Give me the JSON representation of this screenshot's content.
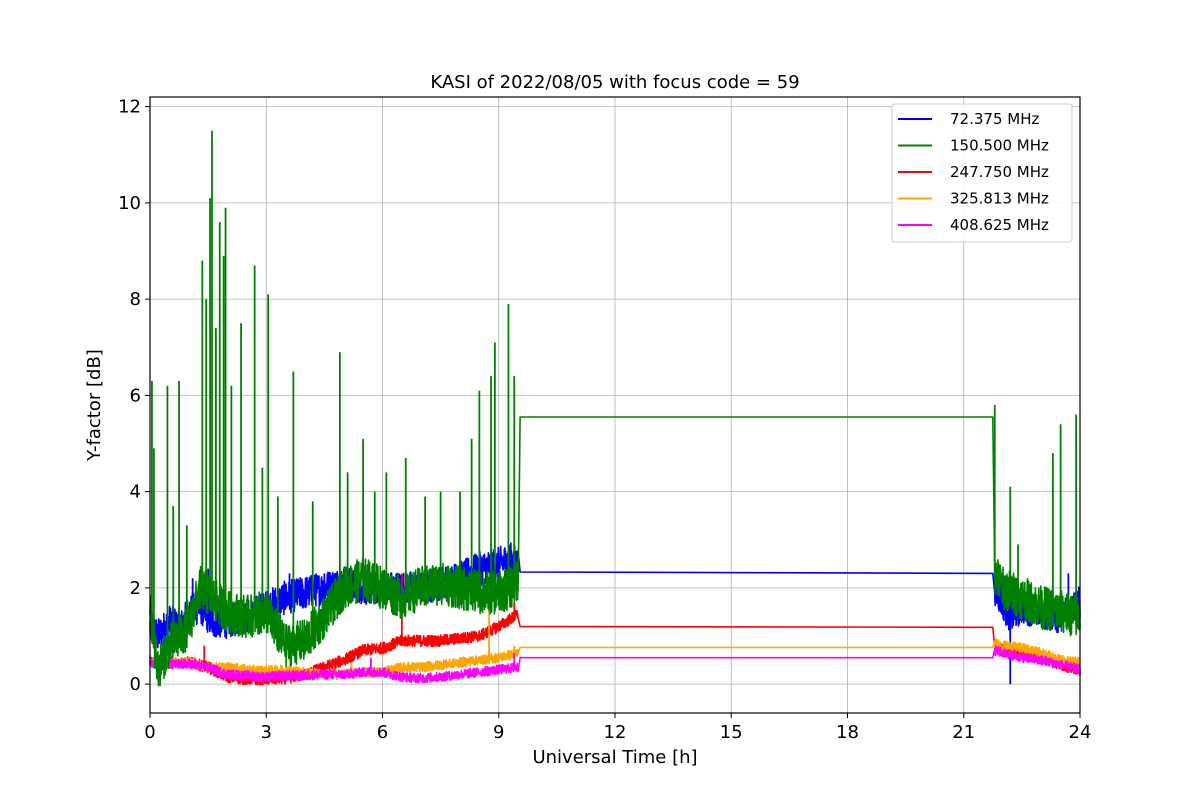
{
  "chart_data": {
    "type": "line",
    "title": "KASI of 2022/08/05 with focus code = 59",
    "xlabel": "Universal Time [h]",
    "ylabel": "Y-factor [dB]",
    "xlim": [
      0,
      24
    ],
    "ylim": [
      -0.6,
      12.2
    ],
    "xticks": [
      0,
      3,
      6,
      9,
      12,
      15,
      18,
      21,
      24
    ],
    "yticks": [
      0,
      2,
      4,
      6,
      8,
      10,
      12
    ],
    "grid": true,
    "legend_position": "top-right",
    "series": [
      {
        "name": " 72.375 MHz",
        "color": "#0000ff",
        "x": [
          0,
          0.2,
          0.5,
          0.8,
          1.0,
          1.3,
          1.6,
          2.0,
          2.5,
          3.0,
          3.5,
          4.0,
          4.5,
          5.0,
          5.5,
          6.0,
          6.5,
          7.0,
          7.5,
          8.0,
          8.5,
          9.0,
          9.3,
          9.5,
          9.55,
          21.75,
          21.8,
          22.0,
          22.2,
          22.5,
          23.0,
          23.5,
          24.0
        ],
        "y": [
          1.2,
          1.0,
          1.3,
          1.2,
          1.5,
          1.6,
          1.3,
          1.3,
          1.4,
          1.6,
          1.8,
          1.9,
          2.0,
          2.1,
          2.0,
          2.0,
          2.0,
          2.0,
          2.1,
          2.2,
          2.4,
          2.5,
          2.6,
          2.5,
          2.33,
          2.3,
          2.0,
          1.7,
          1.4,
          1.6,
          1.5,
          1.4,
          1.7
        ],
        "spikes": [
          [
            1.1,
            2.2
          ],
          [
            1.5,
            2.4
          ],
          [
            3.6,
            2.3
          ],
          [
            4.5,
            2.3
          ],
          [
            8.9,
            2.7
          ],
          [
            9.4,
            2.9
          ],
          [
            21.8,
            2.3
          ],
          [
            22.2,
            0.0
          ],
          [
            23.7,
            2.3
          ]
        ]
      },
      {
        "name": "150.500 MHz",
        "color": "#008000",
        "x": [
          0,
          0.2,
          0.5,
          0.8,
          1.0,
          1.3,
          1.6,
          2.0,
          2.5,
          3.0,
          3.5,
          4.0,
          4.5,
          5.0,
          5.5,
          6.0,
          6.5,
          7.0,
          7.5,
          8.0,
          8.5,
          9.0,
          9.3,
          9.5,
          9.55,
          21.75,
          21.8,
          22.0,
          22.5,
          23.0,
          23.5,
          24.0
        ],
        "y": [
          1.5,
          0.3,
          0.8,
          1.0,
          1.2,
          2.0,
          1.8,
          1.5,
          1.4,
          1.5,
          0.8,
          0.9,
          1.4,
          2.0,
          2.2,
          2.0,
          1.8,
          2.0,
          2.1,
          2.0,
          1.9,
          1.9,
          2.0,
          2.2,
          5.55,
          5.55,
          2.3,
          2.0,
          1.8,
          1.6,
          1.5,
          1.4
        ],
        "spikes": [
          [
            0.05,
            6.3
          ],
          [
            0.1,
            4.9
          ],
          [
            0.45,
            6.2
          ],
          [
            0.6,
            3.7
          ],
          [
            0.75,
            6.3
          ],
          [
            0.95,
            3.3
          ],
          [
            1.35,
            8.8
          ],
          [
            1.45,
            8.0
          ],
          [
            1.55,
            10.1
          ],
          [
            1.6,
            11.5
          ],
          [
            1.7,
            7.4
          ],
          [
            1.8,
            9.6
          ],
          [
            1.9,
            8.9
          ],
          [
            1.95,
            9.9
          ],
          [
            2.1,
            6.2
          ],
          [
            2.35,
            7.5
          ],
          [
            2.7,
            8.7
          ],
          [
            2.9,
            4.5
          ],
          [
            3.05,
            8.1
          ],
          [
            3.3,
            3.9
          ],
          [
            3.7,
            6.5
          ],
          [
            4.2,
            3.8
          ],
          [
            4.9,
            6.9
          ],
          [
            5.1,
            4.4
          ],
          [
            5.5,
            5.1
          ],
          [
            5.8,
            4.0
          ],
          [
            6.1,
            4.4
          ],
          [
            6.6,
            4.7
          ],
          [
            7.1,
            3.9
          ],
          [
            7.5,
            4.0
          ],
          [
            8.0,
            4.0
          ],
          [
            8.3,
            5.1
          ],
          [
            8.5,
            6.1
          ],
          [
            8.8,
            6.4
          ],
          [
            8.9,
            7.1
          ],
          [
            9.25,
            7.9
          ],
          [
            9.4,
            6.4
          ],
          [
            21.8,
            5.8
          ],
          [
            22.2,
            4.1
          ],
          [
            22.4,
            2.9
          ],
          [
            23.3,
            4.8
          ],
          [
            23.5,
            5.4
          ],
          [
            23.9,
            5.6
          ]
        ]
      },
      {
        "name": "247.750 MHz",
        "color": "#ff0000",
        "x": [
          0,
          0.5,
          1.0,
          1.5,
          2.0,
          2.5,
          3.0,
          3.5,
          4.0,
          4.5,
          5.0,
          5.5,
          6.0,
          6.5,
          7.0,
          7.5,
          8.0,
          8.5,
          9.0,
          9.5,
          9.55,
          21.75,
          21.8,
          22.0,
          22.5,
          23.0,
          23.5,
          24.0
        ],
        "y": [
          0.5,
          0.45,
          0.45,
          0.35,
          0.15,
          0.1,
          0.1,
          0.12,
          0.2,
          0.35,
          0.5,
          0.7,
          0.75,
          0.9,
          0.9,
          0.9,
          0.95,
          1.0,
          1.2,
          1.45,
          1.2,
          1.18,
          0.8,
          0.7,
          0.65,
          0.55,
          0.4,
          0.3
        ],
        "spikes": [
          [
            1.4,
            0.8
          ],
          [
            6.5,
            2.3
          ],
          [
            9.4,
            1.7
          ]
        ]
      },
      {
        "name": "325.813 MHz",
        "color": "#ffa500",
        "x": [
          0,
          0.5,
          1.0,
          1.5,
          2.0,
          2.5,
          3.0,
          3.5,
          4.0,
          4.5,
          5.0,
          5.5,
          6.0,
          6.5,
          7.0,
          7.5,
          8.0,
          8.5,
          9.0,
          9.5,
          9.55,
          21.75,
          21.8,
          22.0,
          22.5,
          23.0,
          23.5,
          24.0
        ],
        "y": [
          0.45,
          0.45,
          0.45,
          0.35,
          0.35,
          0.3,
          0.28,
          0.3,
          0.25,
          0.2,
          0.2,
          0.25,
          0.25,
          0.35,
          0.35,
          0.4,
          0.45,
          0.5,
          0.55,
          0.65,
          0.76,
          0.76,
          0.85,
          0.8,
          0.75,
          0.65,
          0.5,
          0.45
        ],
        "spikes": [
          [
            5.2,
            0.45
          ],
          [
            8.75,
            1.85
          ],
          [
            9.4,
            0.8
          ]
        ]
      },
      {
        "name": "408.625 MHz",
        "color": "#ff00ff",
        "x": [
          0,
          0.5,
          1.0,
          1.5,
          2.0,
          2.5,
          3.0,
          3.5,
          4.0,
          4.5,
          5.0,
          5.5,
          6.0,
          6.5,
          7.0,
          7.5,
          8.0,
          8.5,
          9.0,
          9.5,
          9.55,
          21.75,
          21.8,
          22.0,
          22.5,
          23.0,
          23.5,
          24.0
        ],
        "y": [
          0.45,
          0.4,
          0.42,
          0.35,
          0.2,
          0.18,
          0.15,
          0.18,
          0.18,
          0.2,
          0.2,
          0.25,
          0.25,
          0.15,
          0.12,
          0.15,
          0.2,
          0.25,
          0.3,
          0.35,
          0.55,
          0.55,
          0.7,
          0.65,
          0.55,
          0.5,
          0.4,
          0.3
        ],
        "spikes": [
          [
            5.7,
            0.55
          ],
          [
            9.4,
            0.65
          ]
        ]
      }
    ]
  }
}
